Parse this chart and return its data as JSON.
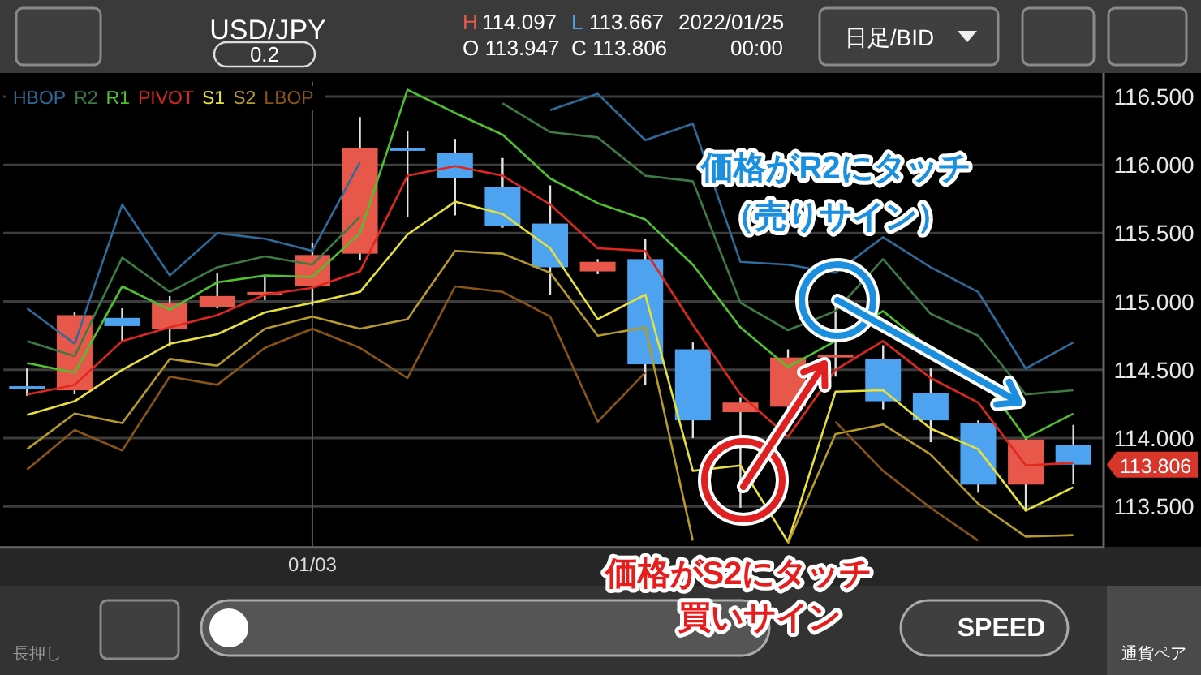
{
  "chart_data": {
    "type": "candlestick",
    "title": "USD/JPY",
    "categories": [
      null,
      null,
      null,
      null,
      null,
      null,
      "01/03",
      null,
      null,
      null,
      null,
      null,
      null,
      null,
      null,
      null,
      null,
      null,
      null,
      null,
      null,
      null,
      null
    ],
    "ohlc": [
      [
        114.38,
        114.51,
        114.31,
        114.37
      ],
      [
        114.35,
        114.92,
        114.32,
        114.9
      ],
      [
        114.88,
        114.95,
        114.71,
        114.82
      ],
      [
        114.8,
        115.04,
        114.67,
        114.99
      ],
      [
        114.96,
        115.21,
        114.95,
        115.04
      ],
      [
        115.05,
        115.19,
        115.01,
        115.07
      ],
      [
        115.11,
        115.43,
        114.97,
        115.34
      ],
      [
        115.35,
        116.35,
        115.3,
        116.12
      ],
      [
        116.12,
        116.25,
        115.62,
        116.11
      ],
      [
        116.09,
        116.19,
        115.63,
        115.9
      ],
      [
        115.84,
        116.05,
        115.54,
        115.55
      ],
      [
        115.57,
        115.85,
        115.05,
        115.25
      ],
      [
        115.22,
        115.31,
        115.2,
        115.29
      ],
      [
        115.31,
        115.46,
        114.39,
        114.54
      ],
      [
        114.65,
        114.7,
        114.0,
        114.13
      ],
      [
        114.19,
        114.3,
        113.49,
        114.26
      ],
      [
        114.23,
        114.65,
        114.19,
        114.59
      ],
      [
        114.59,
        115.0,
        114.45,
        114.61
      ],
      [
        114.58,
        114.68,
        114.21,
        114.27
      ],
      [
        114.33,
        114.51,
        113.97,
        114.13
      ],
      [
        114.11,
        114.13,
        113.6,
        113.66
      ],
      [
        113.66,
        114.0,
        113.47,
        113.99
      ],
      [
        113.947,
        114.097,
        113.667,
        113.806
      ]
    ],
    "colors": [
      "#4da3ef",
      "#e8584a",
      "#4da3ef",
      "#e8584a",
      "#e8584a",
      "#e8584a",
      "#e8584a",
      "#e8584a",
      "#4da3ef",
      "#4da3ef",
      "#4da3ef",
      "#4da3ef",
      "#e8584a",
      "#4da3ef",
      "#4da3ef",
      "#e8584a",
      "#e8584a",
      "#e8584a",
      "#4da3ef",
      "#4da3ef",
      "#4da3ef",
      "#e8584a",
      "#4da3ef"
    ],
    "series": [
      {
        "type": "line",
        "name": "HBOP",
        "color": "#2e6a9a",
        "values": [
          114.95,
          114.69,
          115.71,
          115.19,
          115.5,
          115.46,
          115.37,
          116.02,
          null,
          null,
          null,
          116.4,
          116.52,
          116.18,
          116.3,
          115.29,
          115.27,
          115.21,
          115.47,
          115.25,
          115.07,
          114.51,
          114.7
        ]
      },
      {
        "type": "line",
        "name": "R2",
        "color": "#3d7a44",
        "values": [
          114.71,
          114.6,
          115.32,
          115.07,
          115.25,
          115.33,
          115.27,
          115.62,
          null,
          null,
          116.45,
          116.24,
          116.2,
          115.92,
          115.88,
          114.99,
          114.79,
          114.93,
          115.31,
          114.91,
          114.75,
          114.32,
          114.35
        ]
      },
      {
        "type": "line",
        "name": "R1",
        "color": "#4fc02e",
        "values": [
          114.55,
          114.48,
          115.11,
          114.94,
          115.14,
          115.19,
          115.18,
          115.5,
          116.55,
          116.38,
          116.22,
          115.9,
          115.72,
          115.6,
          115.27,
          114.81,
          114.52,
          114.71,
          114.93,
          114.65,
          114.48,
          114.0,
          114.18
        ]
      },
      {
        "type": "line",
        "name": "PIVOT",
        "color": "#e0271f",
        "values": [
          114.32,
          114.39,
          114.71,
          114.81,
          114.9,
          115.05,
          115.1,
          115.22,
          115.92,
          115.99,
          115.92,
          115.71,
          115.39,
          115.37,
          114.83,
          114.32,
          114.01,
          114.5,
          114.71,
          114.44,
          114.26,
          113.8,
          113.82
        ]
      },
      {
        "type": "line",
        "name": "S1",
        "color": "#e8e03a",
        "values": [
          114.17,
          114.27,
          114.5,
          114.69,
          114.76,
          114.92,
          114.99,
          115.07,
          115.49,
          115.73,
          115.64,
          115.39,
          114.87,
          115.05,
          113.76,
          113.8,
          113.24,
          114.34,
          114.35,
          114.07,
          113.92,
          113.47,
          113.64
        ]
      },
      {
        "type": "line",
        "name": "S2",
        "color": "#b59a2a",
        "values": [
          113.92,
          114.18,
          114.11,
          114.58,
          114.53,
          114.8,
          114.89,
          114.8,
          114.87,
          115.37,
          115.35,
          115.21,
          114.75,
          114.81,
          113.25,
          null,
          113.23,
          114.03,
          114.1,
          113.88,
          113.52,
          113.28,
          113.29
        ]
      },
      {
        "type": "line",
        "name": "LBOP",
        "color": "#8a5416",
        "values": [
          113.77,
          114.06,
          113.91,
          114.45,
          114.39,
          114.66,
          114.8,
          114.66,
          114.44,
          115.11,
          115.07,
          114.89,
          114.12,
          114.48,
          null,
          null,
          null,
          114.12,
          113.76,
          113.49,
          113.25,
          null,
          null
        ]
      }
    ],
    "ylim": [
      113.2,
      116.61
    ],
    "yticks": [
      {
        "value": 113.5,
        "label": "113.500"
      },
      {
        "value": 114,
        "label": "114.000"
      },
      {
        "value": 114.5,
        "label": "114.500"
      },
      {
        "value": 115,
        "label": "115.000"
      },
      {
        "value": 115.5,
        "label": "115.500"
      },
      {
        "value": 116,
        "label": "116.000"
      },
      {
        "value": 116.5,
        "label": "116.500"
      }
    ],
    "grid": true,
    "legend": "top left",
    "annotations": [
      "価格がR2にタッチ",
      "（売りサイン）",
      "価格がS2にタッチ",
      "買いサイン",
      "H",
      "114.097",
      "L",
      "113.667",
      "O 113.947",
      "C 113.806",
      "2022/01/25",
      "00:00",
      "0.2",
      "日足/BID",
      "長押し",
      "SPEED",
      "通貨ペア",
      "113.806"
    ]
  }
}
